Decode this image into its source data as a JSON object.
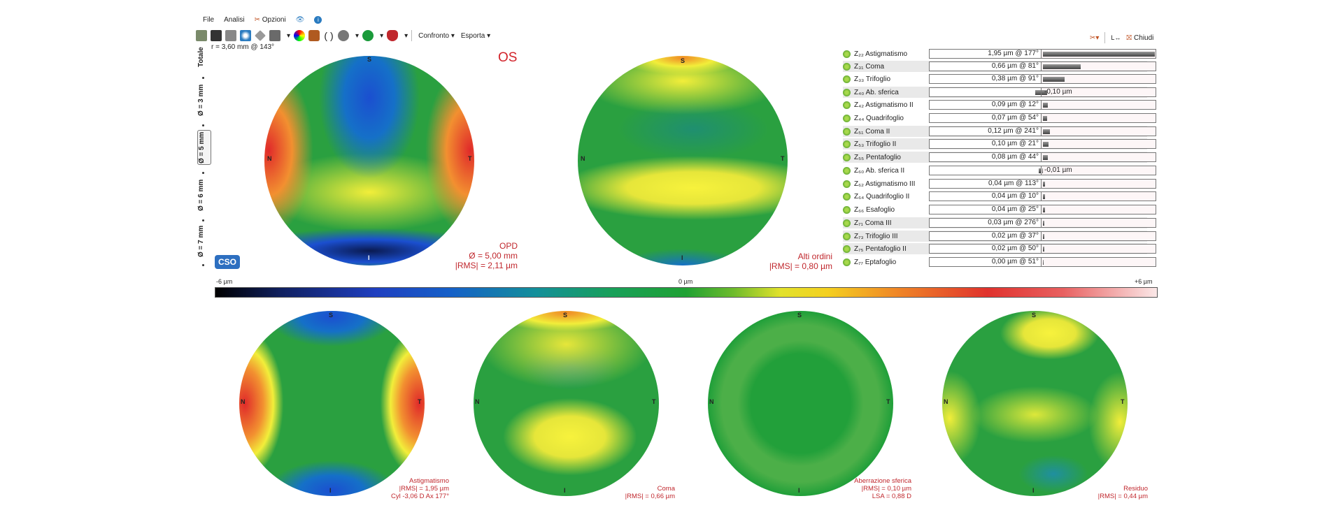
{
  "menu": {
    "file": "File",
    "analisi": "Analisi",
    "opzioni": "Opzioni"
  },
  "toolbar": {
    "confronto": "Confronto",
    "esporta": "Esporta",
    "chiudi": "Chiudi"
  },
  "sidetabs": [
    "Totale",
    "Ø = 3 mm",
    "Ø = 5 mm",
    "Ø = 6 mm",
    "Ø = 7 mm"
  ],
  "radius_info": "r = 3,60 mm @ 143°",
  "eye": "OS",
  "logo": "CSO",
  "main_maps": {
    "opd": {
      "title": "OPD",
      "diam": "Ø = 5,00 mm",
      "rms": "|RMS| = 2,11 µm"
    },
    "high": {
      "title": "Alti ordini",
      "rms": "|RMS| = 0,80 µm"
    }
  },
  "orient": {
    "s": "S",
    "i": "I",
    "n": "N",
    "t": "T"
  },
  "scale": {
    "min": "-6 µm",
    "mid": "0 µm",
    "max": "+6 µm"
  },
  "zernike": [
    {
      "name": "Z₂₂ Astigmatismo",
      "value": "1,95 µm @ 177°",
      "mag": 1.95
    },
    {
      "name": "Z₃₁ Coma",
      "value": "0,66 µm @ 81°",
      "mag": 0.66
    },
    {
      "name": "Z₃₃ Trifoglio",
      "value": "0,38 µm @ 91°",
      "mag": 0.38
    },
    {
      "name": "Z₄₀ Ab. sferica",
      "value": "-0,10 µm",
      "mag": -0.1
    },
    {
      "name": "Z₄₂ Astigmatismo II",
      "value": "0,09 µm @ 12°",
      "mag": 0.09
    },
    {
      "name": "Z₄₄ Quadrifoglio",
      "value": "0,07 µm @ 54°",
      "mag": 0.07
    },
    {
      "name": "Z₅₁ Coma II",
      "value": "0,12 µm @ 241°",
      "mag": 0.12
    },
    {
      "name": "Z₅₃ Trifoglio II",
      "value": "0,10 µm @ 21°",
      "mag": 0.1
    },
    {
      "name": "Z₅₅ Pentafoglio",
      "value": "0,08 µm @ 44°",
      "mag": 0.08
    },
    {
      "name": "Z₆₀ Ab. sferica II",
      "value": "-0,01 µm",
      "mag": -0.01
    },
    {
      "name": "Z₆₂ Astigmatismo III",
      "value": "0,04 µm @ 113°",
      "mag": 0.04
    },
    {
      "name": "Z₆₄ Quadrifoglio II",
      "value": "0,04 µm @ 10°",
      "mag": 0.04
    },
    {
      "name": "Z₆₆ Esafoglio",
      "value": "0,04 µm @ 25°",
      "mag": 0.04
    },
    {
      "name": "Z₇₁ Coma III",
      "value": "0,03 µm @ 276°",
      "mag": 0.03
    },
    {
      "name": "Z₇₃ Trifoglio III",
      "value": "0,02 µm @ 37°",
      "mag": 0.02
    },
    {
      "name": "Z₇₅ Pentafoglio II",
      "value": "0,02 µm @ 50°",
      "mag": 0.02
    },
    {
      "name": "Z₇₇ Eptafoglio",
      "value": "0,00 µm @ 51°",
      "mag": 0.0
    }
  ],
  "small_maps": [
    {
      "title": "Astigmatismo",
      "l1": "|RMS| = 1,95 µm",
      "l2": "Cyl -3,06 D Ax 177°"
    },
    {
      "title": "Coma",
      "l1": "|RMS| = 0,66 µm",
      "l2": ""
    },
    {
      "title": "Aberrazione sferica",
      "l1": "|RMS| = 0,10 µm",
      "l2": "LSA = 0,88 D"
    },
    {
      "title": "Residuo",
      "l1": "|RMS| = 0,44 µm",
      "l2": ""
    }
  ]
}
